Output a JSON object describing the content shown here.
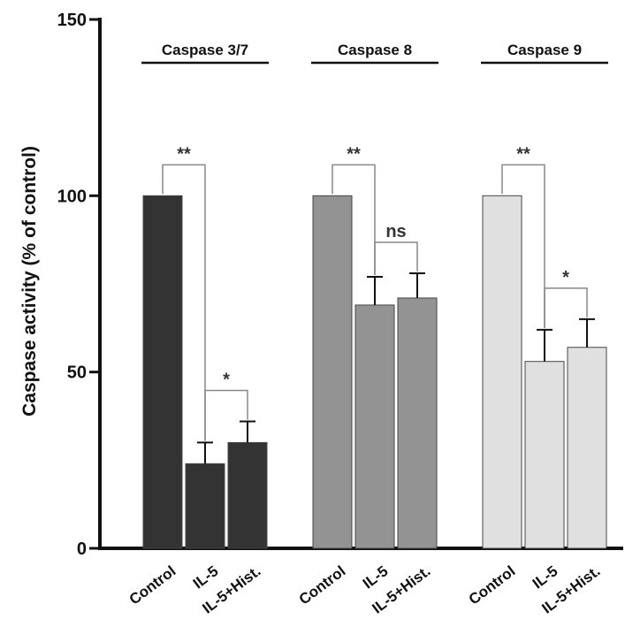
{
  "chart_data": {
    "type": "bar",
    "ylabel": "Caspase activity (% of control)",
    "ylim": [
      0,
      150
    ],
    "yticks": [
      0,
      50,
      100,
      150
    ],
    "categories": [
      "Control",
      "IL-5",
      "IL-5+Hist."
    ],
    "groups": [
      {
        "title": "Caspase 3/7",
        "color": "#333333",
        "values": [
          100,
          24,
          30
        ],
        "errors": [
          0,
          6,
          6
        ],
        "comparisons": [
          {
            "from": 0,
            "to": 1,
            "label": "**"
          },
          {
            "from": 1,
            "to": 2,
            "label": "*"
          }
        ]
      },
      {
        "title": "Caspase 8",
        "color": "#939393",
        "values": [
          100,
          69,
          71
        ],
        "errors": [
          0,
          8,
          7
        ],
        "comparisons": [
          {
            "from": 0,
            "to": 1,
            "label": "**"
          },
          {
            "from": 1,
            "to": 2,
            "label": "ns"
          }
        ]
      },
      {
        "title": "Caspase 9",
        "color": "#e0e0e0",
        "values": [
          100,
          53,
          57
        ],
        "errors": [
          0,
          9,
          8
        ],
        "comparisons": [
          {
            "from": 0,
            "to": 1,
            "label": "**"
          },
          {
            "from": 1,
            "to": 2,
            "label": "*"
          }
        ]
      }
    ]
  }
}
